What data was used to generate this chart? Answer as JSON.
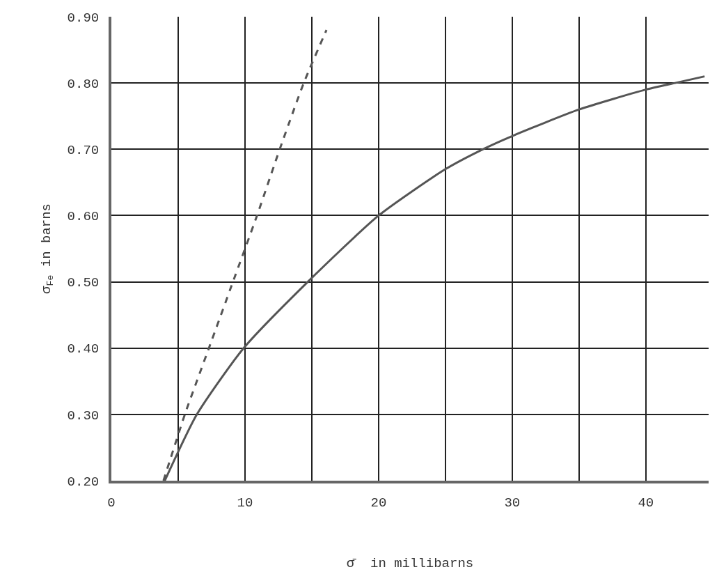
{
  "chart_data": {
    "type": "line",
    "xlabel": "σ̄  in millibarns",
    "ylabel": "σ$_{Fe}$ in barns",
    "xlim": [
      0,
      44.7
    ],
    "ylim": [
      0.2,
      0.9
    ],
    "xticks": [
      0,
      {
        "value": 5,
        "label": null
      },
      10,
      {
        "value": 15,
        "label": null
      },
      20,
      {
        "value": 25,
        "label": null
      },
      30,
      {
        "value": 35,
        "label": null
      },
      40
    ],
    "yticks": [
      {
        "value": 0.2,
        "label": "0.20"
      },
      {
        "value": 0.3,
        "label": "0.30"
      },
      {
        "value": 0.4,
        "label": "0.40"
      },
      {
        "value": 0.5,
        "label": "0.50"
      },
      {
        "value": 0.6,
        "label": "0.60"
      },
      {
        "value": 0.7,
        "label": "0.70"
      },
      {
        "value": 0.8,
        "label": "0.80"
      },
      {
        "value": 0.9,
        "label": "0.90"
      }
    ],
    "grid": true,
    "marker": "none",
    "series": [
      {
        "color": "#555555",
        "line_style": "solid",
        "x": [
          4.0,
          6.4,
          9.9,
          14.7,
          20.0,
          25,
          27.8,
          30,
          35,
          40,
          42.2,
          44.4
        ],
        "values": [
          0.2,
          0.3,
          0.4,
          0.5,
          0.6,
          0.67,
          0.7,
          0.72,
          0.76,
          0.79,
          0.8,
          0.81
        ]
      },
      {
        "color": "#555555",
        "line_style": "dashed",
        "x": [
          3.9,
          5.5,
          7.3,
          9.1,
          10.9,
          12.6,
          14.4,
          16.1
        ],
        "values": [
          0.2,
          0.3,
          0.4,
          0.5,
          0.6,
          0.7,
          0.8,
          0.88
        ]
      }
    ]
  }
}
